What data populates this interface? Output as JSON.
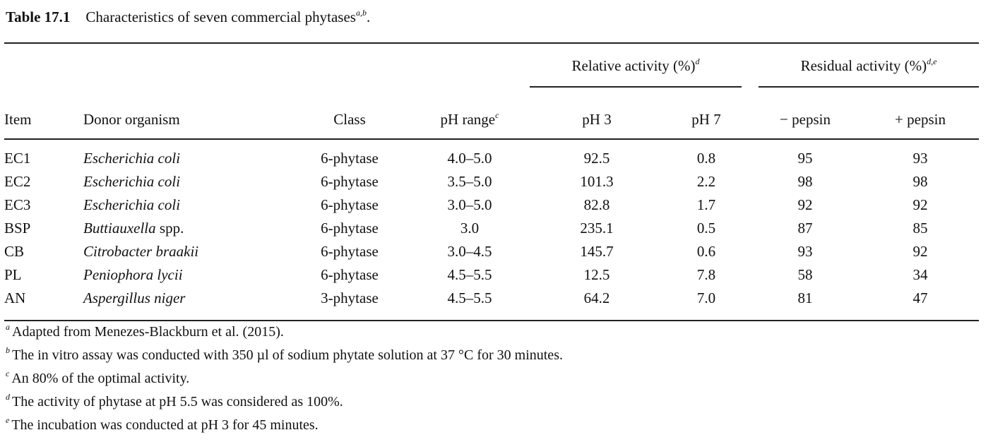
{
  "caption": {
    "label": "Table 17.1",
    "text": "Characteristics of seven commercial phytases",
    "sup": "a,b",
    "end": "."
  },
  "table": {
    "groups": [
      {
        "text": "Relative activity (%)",
        "sup": "d"
      },
      {
        "text": "Residual activity (%)",
        "sup": "d,e"
      }
    ],
    "columns": [
      {
        "text": "Item"
      },
      {
        "text": "Donor organism"
      },
      {
        "text": "Class"
      },
      {
        "text": "pH range",
        "sup": "c"
      },
      {
        "text": "pH 3"
      },
      {
        "text": "pH 7"
      },
      {
        "text": "− pepsin"
      },
      {
        "text": "+ pepsin"
      }
    ],
    "rows": [
      [
        "EC1",
        "Escherichia coli",
        "6-phytase",
        "4.0–5.0",
        "92.5",
        "0.8",
        "95",
        "93"
      ],
      [
        "EC2",
        "Escherichia coli",
        "6-phytase",
        "3.5–5.0",
        "101.3",
        "2.2",
        "98",
        "98"
      ],
      [
        "EC3",
        "Escherichia coli",
        "6-phytase",
        "3.0–5.0",
        "82.8",
        "1.7",
        "92",
        "92"
      ],
      [
        "BSP",
        {
          "italic": "Buttiauxella",
          "roman": "spp."
        },
        "6-phytase",
        "3.0",
        "235.1",
        "0.5",
        "87",
        "85"
      ],
      [
        "CB",
        "Citrobacter braakii",
        "6-phytase",
        "3.0–4.5",
        "145.7",
        "0.6",
        "93",
        "92"
      ],
      [
        "PL",
        "Peniophora lycii",
        "6-phytase",
        "4.5–5.5",
        "12.5",
        "7.8",
        "58",
        "34"
      ],
      [
        "AN",
        "Aspergillus niger",
        "3-phytase",
        "4.5–5.5",
        "64.2",
        "7.0",
        "81",
        "47"
      ]
    ]
  },
  "footnotes": [
    {
      "mark": "a",
      "text": "Adapted from Menezes-Blackburn et al. (2015)."
    },
    {
      "mark": "b",
      "text": "The in vitro assay was conducted with 350 µl of sodium phytate solution at 37 °C for 30 minutes."
    },
    {
      "mark": "c",
      "text": "An 80% of the optimal activity."
    },
    {
      "mark": "d",
      "text": "The activity of phytase at pH 5.5 was considered as 100%."
    },
    {
      "mark": "e",
      "text": "The incubation was conducted at pH 3 for 45 minutes."
    }
  ]
}
